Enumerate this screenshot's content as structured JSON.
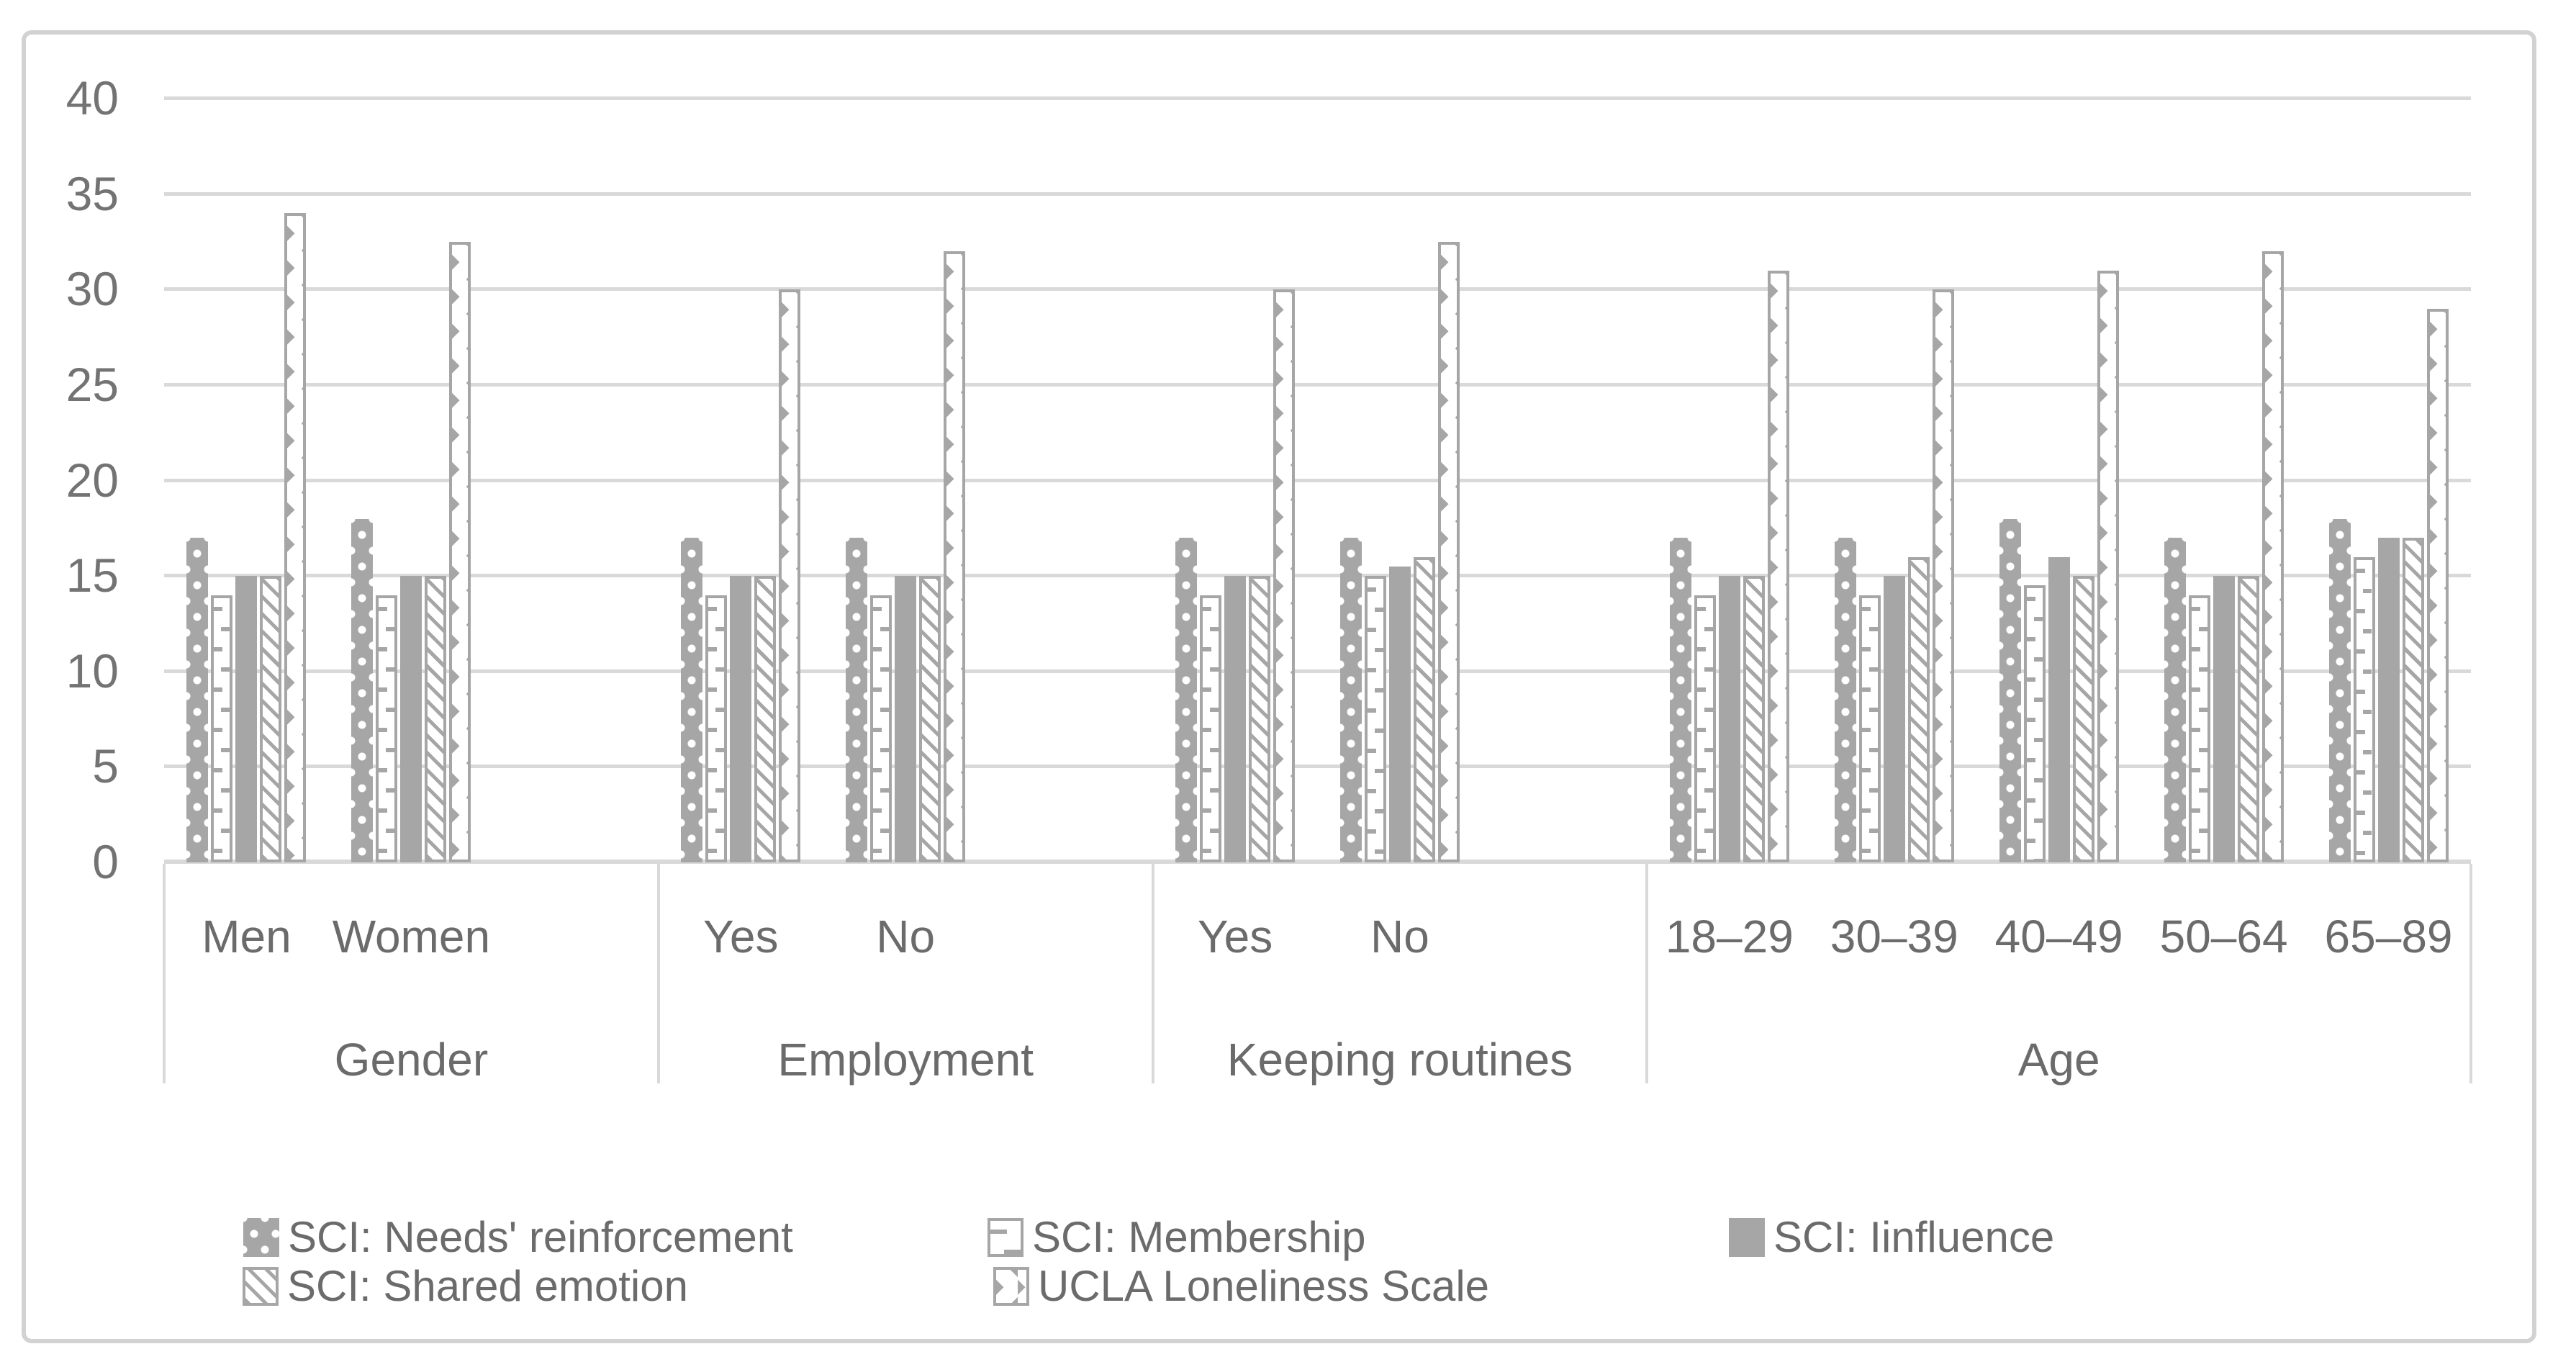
{
  "colors": {
    "bar_gray": "#a6a6a6",
    "grid_gray": "#d9d9d9",
    "text_gray": "#6b6b6b",
    "frame_gray": "#d2d2d2",
    "background": "#ffffff"
  },
  "chart_data": {
    "type": "bar",
    "title": "",
    "xlabel": "",
    "ylabel": "",
    "ylim": [
      0,
      40
    ],
    "yticks": [
      0,
      5,
      10,
      15,
      20,
      25,
      30,
      35,
      40
    ],
    "grid": true,
    "legend_position": "bottom",
    "group_sections": [
      {
        "label": "Gender",
        "categories": [
          "Men",
          "Women"
        ]
      },
      {
        "label": "Employment",
        "categories": [
          "Yes",
          "No"
        ]
      },
      {
        "label": "Keeping routines",
        "categories": [
          "Yes",
          "No"
        ]
      },
      {
        "label": "Age",
        "categories": [
          "18–29",
          "30–39",
          "40–49",
          "50–64",
          "65–89"
        ]
      }
    ],
    "category_order": [
      "Men",
      "Women",
      "Yes",
      "No",
      "Yes",
      "No",
      "18–29",
      "30–39",
      "40–49",
      "50–64",
      "65–89"
    ],
    "series": [
      {
        "name": "SCI: Needs' reinforcement",
        "pattern": "white-dots-on-gray",
        "values": [
          17,
          18,
          17,
          17,
          17,
          17,
          17,
          17,
          18,
          17,
          18
        ]
      },
      {
        "name": "SCI: Membership",
        "pattern": "horizontal-dash-ladder",
        "values": [
          14,
          14,
          14,
          14,
          14,
          15,
          14,
          14,
          14.5,
          14,
          16
        ]
      },
      {
        "name": "SCI: Iinfluence",
        "pattern": "solid-gray",
        "values": [
          15,
          15,
          15,
          15,
          15,
          15.5,
          15,
          15,
          16,
          15,
          17
        ]
      },
      {
        "name": "SCI: Shared emotion",
        "pattern": "diagonal-hatch",
        "values": [
          15,
          15,
          15,
          15,
          15,
          16,
          15,
          16,
          15,
          15,
          17
        ]
      },
      {
        "name": "UCLA Loneliness Scale",
        "pattern": "divot-outline",
        "values": [
          34,
          32.5,
          30,
          32,
          30,
          32.5,
          31,
          30,
          31,
          32,
          29
        ]
      }
    ]
  }
}
